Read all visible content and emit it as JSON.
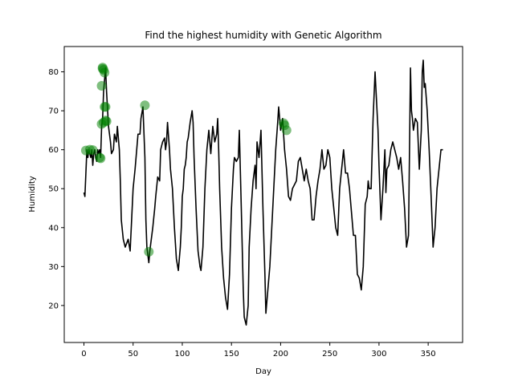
{
  "chart_data": {
    "type": "line",
    "title": "Find the highest humidity with Genetic Algorithm",
    "xlabel": "Day",
    "ylabel": "Humidity",
    "xlim": [
      -20,
      385
    ],
    "ylim": [
      10.5,
      86.5
    ],
    "xticks": [
      0,
      50,
      100,
      150,
      200,
      250,
      300,
      350
    ],
    "yticks": [
      20,
      30,
      40,
      50,
      60,
      70,
      80
    ],
    "grid": false,
    "colors": {
      "line": "#000000",
      "points": "#008000"
    },
    "series": [
      {
        "x": [
          0,
          1,
          2,
          3,
          4,
          5,
          6,
          7,
          8,
          9,
          10,
          11,
          12,
          13,
          14,
          15,
          16,
          17,
          18,
          19,
          20,
          21,
          22,
          23,
          25,
          27,
          28,
          30,
          31,
          33,
          34,
          36,
          37,
          38,
          40,
          42,
          45,
          47,
          50,
          52,
          55,
          57,
          58,
          60,
          62,
          63,
          64,
          66,
          67,
          68,
          70,
          72,
          73,
          75,
          77,
          78,
          80,
          82,
          83,
          84,
          85,
          87,
          88,
          90,
          92,
          94,
          96,
          98,
          99,
          100,
          101,
          102,
          103,
          104,
          105,
          106,
          108,
          110,
          111,
          112,
          114,
          116,
          118,
          119,
          121,
          123,
          125,
          127,
          129,
          131,
          133,
          135,
          136,
          137,
          138,
          140,
          142,
          144,
          146,
          148,
          150,
          152,
          153,
          155,
          157,
          158,
          160,
          162,
          163,
          165,
          167,
          168,
          170,
          172,
          174,
          175,
          176,
          178,
          180,
          181,
          182,
          184,
          185,
          187,
          189,
          191,
          193,
          195,
          197,
          198,
          200,
          202,
          204,
          206,
          208,
          210,
          212,
          214,
          216,
          218,
          220,
          222,
          224,
          226,
          228,
          230,
          232,
          234,
          236,
          238,
          240,
          242,
          244,
          246,
          248,
          250,
          252,
          254,
          256,
          258,
          260,
          262,
          264,
          266,
          268,
          270,
          272,
          274,
          276,
          278,
          280,
          282,
          284,
          286,
          288,
          289,
          290,
          292,
          294,
          296,
          298,
          299,
          300,
          302,
          304,
          306,
          307,
          308,
          310,
          312,
          314,
          316,
          318,
          320,
          322,
          324,
          326,
          328,
          330,
          332,
          333,
          334,
          335,
          337,
          339,
          341,
          343,
          344,
          345,
          346,
          347,
          349,
          351,
          353,
          355,
          357,
          359,
          361,
          363,
          365
        ],
        "y": [
          49,
          48,
          54,
          60,
          58,
          60,
          59,
          58,
          60,
          56,
          59,
          60,
          58,
          57,
          60,
          59,
          60,
          58,
          66,
          68,
          75,
          78,
          81,
          75,
          66,
          62,
          59,
          60,
          64,
          62,
          66,
          60,
          52,
          42,
          37,
          35,
          37,
          34,
          50,
          55,
          64,
          64,
          68,
          71,
          58,
          42,
          35,
          31,
          34,
          36,
          40,
          45,
          48,
          53,
          52,
          60,
          62,
          63,
          60,
          62,
          67,
          60,
          55,
          50,
          40,
          32,
          29,
          35,
          40,
          48,
          50,
          55,
          56,
          58,
          62,
          63,
          67,
          70,
          67,
          58,
          45,
          34,
          30,
          29,
          35,
          50,
          60,
          65,
          59,
          66,
          62,
          64,
          68,
          60,
          50,
          35,
          27,
          22,
          19,
          28,
          45,
          55,
          58,
          57,
          58,
          65,
          45,
          24,
          17,
          15,
          20,
          35,
          45,
          52,
          56,
          50,
          62,
          58,
          65,
          55,
          45,
          28,
          18,
          24,
          30,
          40,
          50,
          60,
          67,
          71,
          65,
          68,
          60,
          55,
          48,
          47,
          50,
          51,
          52,
          57,
          58,
          55,
          52,
          55,
          52,
          50,
          42,
          42,
          48,
          52,
          55,
          60,
          55,
          56,
          60,
          58,
          50,
          45,
          40,
          38,
          50,
          55,
          60,
          54,
          54,
          50,
          44,
          38,
          38,
          28,
          27,
          24,
          30,
          46,
          48,
          52,
          50,
          50,
          68,
          80,
          70,
          65,
          56,
          42,
          50,
          60,
          49,
          55,
          56,
          60,
          62,
          60,
          58,
          55,
          58,
          52,
          45,
          35,
          38,
          81,
          70,
          68,
          65,
          68,
          67,
          55,
          65,
          80,
          83,
          76,
          77,
          70,
          60,
          48,
          35,
          40,
          50,
          55,
          60,
          60
        ]
      }
    ],
    "ga_points": {
      "x": [
        2,
        6,
        9,
        16,
        17,
        18,
        18,
        19,
        19,
        20,
        20,
        21,
        21,
        22,
        22,
        23,
        62,
        66,
        203,
        204,
        206
      ],
      "y": [
        59.8,
        60,
        59.9,
        58,
        57.8,
        66.6,
        76.4,
        81.1,
        80.8,
        80.5,
        67,
        71,
        79.8,
        67.5,
        71,
        67.3,
        71.4,
        33.8,
        66.8,
        66.3,
        65
      ]
    }
  }
}
